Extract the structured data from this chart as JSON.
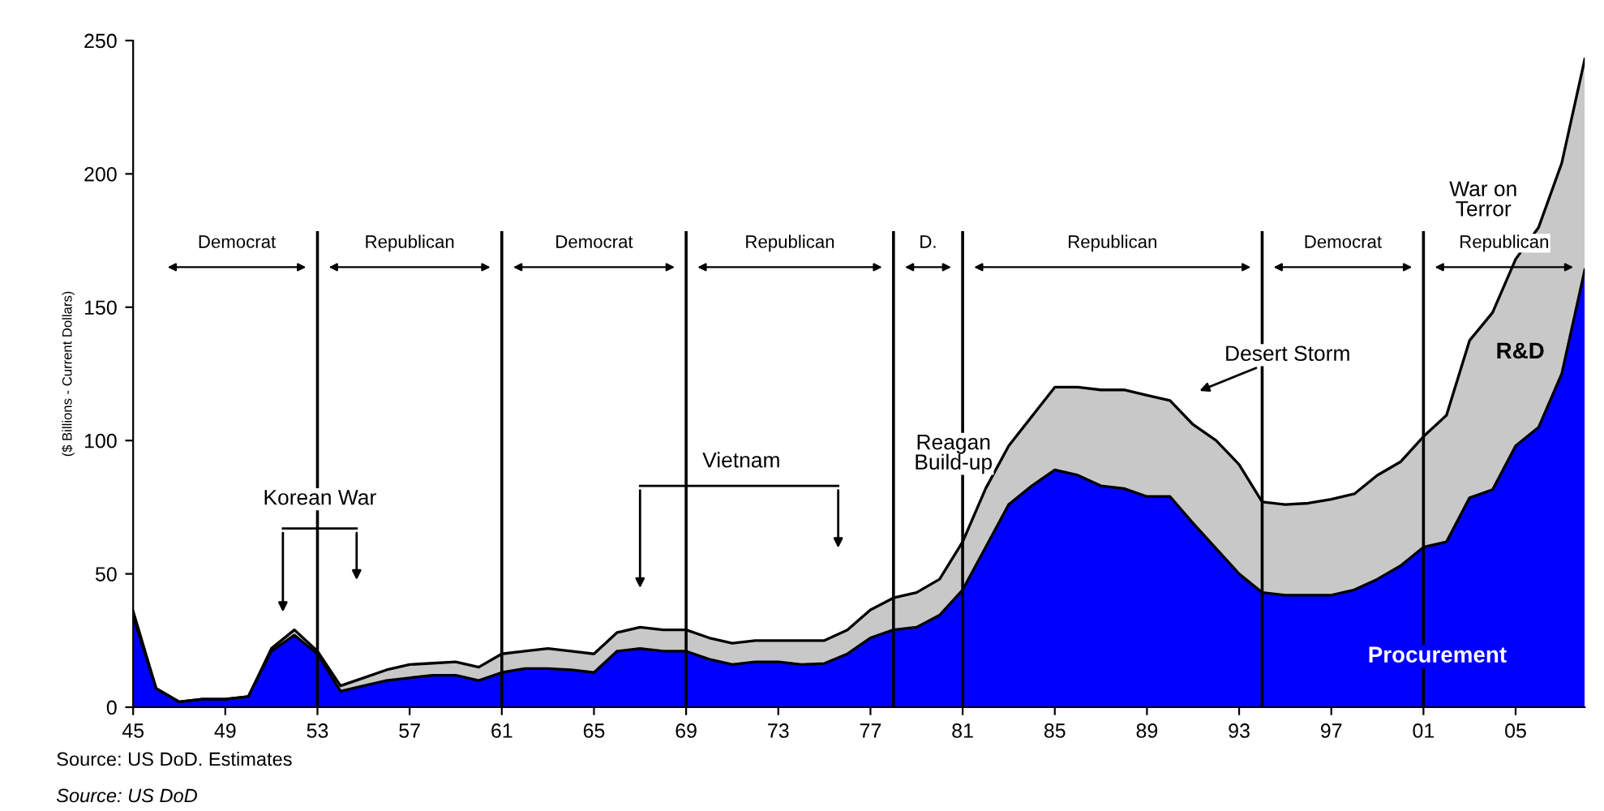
{
  "chart_data": {
    "type": "area",
    "stacked": true,
    "ylabel": "($ Billions - Current Dollars)",
    "x": [
      1945,
      1946,
      1947,
      1948,
      1949,
      1950,
      1951,
      1952,
      1953,
      1954,
      1955,
      1956,
      1957,
      1958,
      1959,
      1960,
      1961,
      1962,
      1963,
      1964,
      1965,
      1966,
      1967,
      1968,
      1969,
      1970,
      1971,
      1972,
      1973,
      1974,
      1975,
      1976,
      1977,
      1978,
      1979,
      1980,
      1981,
      1982,
      1983,
      1984,
      1985,
      1986,
      1987,
      1988,
      1989,
      1990,
      1991,
      1992,
      1993,
      1994,
      1995,
      1996,
      1997,
      1998,
      1999,
      2000,
      2001,
      2002,
      2003,
      2004,
      2005,
      2006,
      2007,
      2008
    ],
    "series": [
      {
        "name": "Procurement",
        "color": "#0000ff",
        "values": [
          34,
          7,
          2,
          3,
          3,
          4,
          21,
          27,
          20,
          6,
          8,
          10,
          11,
          12,
          12,
          10,
          13,
          14.5,
          14.5,
          14,
          13,
          21,
          22,
          21,
          21,
          18,
          16,
          17,
          17,
          16,
          16.4,
          20,
          26,
          29,
          30,
          34.5,
          44,
          60,
          76,
          83,
          89,
          87,
          83,
          82,
          79,
          79,
          69,
          59.5,
          50,
          43,
          42,
          42,
          42,
          44,
          48,
          53,
          60,
          62,
          78.5,
          81.6,
          98,
          105,
          125,
          164
        ]
      },
      {
        "name": "R&D",
        "color": "#c8c8c8",
        "values": [
          2,
          0,
          0,
          0,
          0,
          0,
          1,
          2,
          1,
          2,
          3,
          4,
          5,
          4.5,
          5,
          5,
          7,
          6.5,
          7.5,
          7,
          7,
          7,
          8,
          8,
          8,
          8,
          8,
          8,
          8,
          9,
          8.6,
          9,
          10.5,
          12,
          13,
          13.5,
          18,
          22,
          22,
          26,
          31,
          33,
          36,
          37,
          38,
          36,
          37,
          40.5,
          41,
          34,
          34,
          34.5,
          36,
          36,
          39,
          39,
          41.5,
          47.5,
          59,
          66.4,
          70,
          75,
          79,
          79
        ]
      }
    ],
    "xlim": [
      1945,
      2008
    ],
    "xticks": [
      {
        "value": 1945,
        "label": "45"
      },
      {
        "value": 1949,
        "label": "49"
      },
      {
        "value": 1953,
        "label": "53"
      },
      {
        "value": 1957,
        "label": "57"
      },
      {
        "value": 1961,
        "label": "61"
      },
      {
        "value": 1965,
        "label": "65"
      },
      {
        "value": 1969,
        "label": "69"
      },
      {
        "value": 1973,
        "label": "73"
      },
      {
        "value": 1977,
        "label": "77"
      },
      {
        "value": 1981,
        "label": "81"
      },
      {
        "value": 1985,
        "label": "85"
      },
      {
        "value": 1989,
        "label": "89"
      },
      {
        "value": 1993,
        "label": "93"
      },
      {
        "value": 1997,
        "label": "97"
      },
      {
        "value": 2001,
        "label": "01"
      },
      {
        "value": 2005,
        "label": "05"
      }
    ],
    "ylim": [
      0,
      250
    ],
    "yticks": [
      0,
      50,
      100,
      150,
      200,
      250
    ],
    "ref_lines": [
      {
        "axis": "x",
        "value": 1953,
        "color": "#000000"
      },
      {
        "axis": "x",
        "value": 1961,
        "color": "#000000"
      },
      {
        "axis": "x",
        "value": 1969,
        "color": "#000000"
      },
      {
        "axis": "x",
        "value": 1978,
        "color": "#000000"
      },
      {
        "axis": "x",
        "value": 1981,
        "color": "#000000"
      },
      {
        "axis": "x",
        "value": 1994,
        "color": "#000000"
      },
      {
        "axis": "x",
        "value": 2001,
        "color": "#000000"
      }
    ],
    "annotations": [
      "Democrat",
      "Republican",
      "Democrat",
      "Republican",
      "D.",
      "Republican",
      "Democrat",
      "Republican",
      "Korean War",
      "Vietnam",
      "Reagan\nBuild-up",
      "Desert Storm",
      "War on\nTerror",
      "Source: US DoD. Estimates",
      "Source: US DoD"
    ],
    "grid": false
  }
}
